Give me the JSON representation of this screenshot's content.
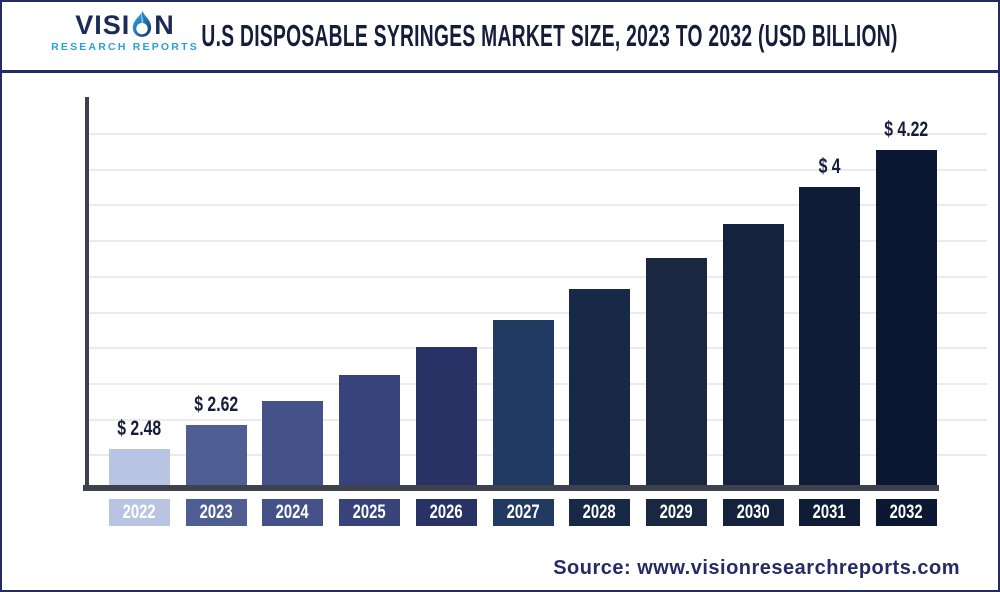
{
  "logo": {
    "name_prefix": "VISI",
    "name_suffix": "N",
    "tagline": "RESEARCH REPORTS"
  },
  "header": {
    "title": "U.S DISPOSABLE SYRINGES MARKET SIZE, 2023 TO 2032 (USD BILLION)"
  },
  "chart_data": {
    "type": "bar",
    "title": "U.S Disposable Syringes Market Size, 2023 to 2032 (USD Billion)",
    "unit": "USD Billion",
    "categories": [
      "2022",
      "2023",
      "2024",
      "2025",
      "2026",
      "2027",
      "2028",
      "2029",
      "2030",
      "2031",
      "2032"
    ],
    "values": [
      2.48,
      2.62,
      2.76,
      2.91,
      3.07,
      3.23,
      3.41,
      3.59,
      3.79,
      4.0,
      4.22
    ],
    "point_labels": [
      "$ 2.48",
      "$ 2.62",
      "",
      "",
      "",
      "",
      "",
      "",
      "",
      "$ 4",
      "$ 4.22"
    ],
    "bar_colors": [
      "#b9c4e3",
      "#4f5f93",
      "#455189",
      "#37437a",
      "#293265",
      "#213a61",
      "#182948",
      "#192840",
      "#14223d",
      "#0f1c38",
      "#0b1733"
    ],
    "grid": "horizontal",
    "legend": false,
    "value_axis": {
      "tick_labels_shown": false,
      "estimated_baseline": 2.27,
      "estimated_top": 4.4
    }
  },
  "footer": {
    "source": "Source: www.visionresearchreports.com"
  },
  "colors": {
    "frame_border": "#262b66",
    "title_text": "#161d3a",
    "logo_navy": "#1c2a56",
    "tagline_blue": "#2b9fd9",
    "axis": "#3d424d",
    "gridline": "#ebebeb",
    "bar_label_text": "#161d3a",
    "tick_text": "#ffffff",
    "source_text": "#262b66"
  }
}
